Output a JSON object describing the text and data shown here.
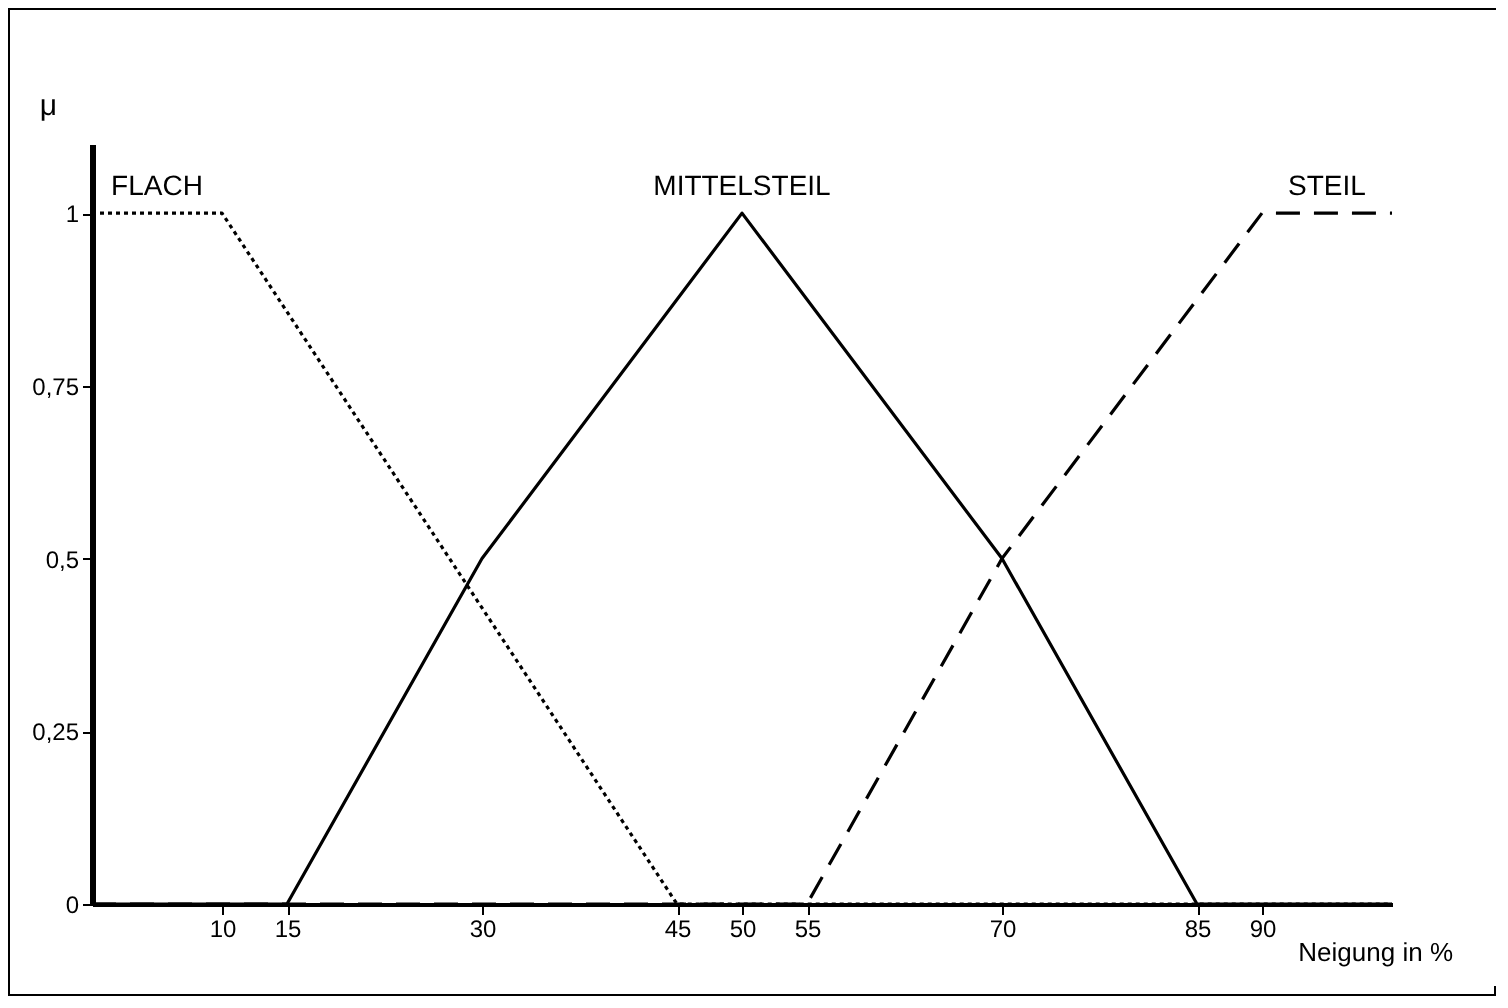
{
  "chart_data": {
    "type": "line",
    "ylabel": "μ",
    "xlabel": "Neigung in %",
    "xlim": [
      0,
      100
    ],
    "xticks": [
      10,
      15,
      30,
      45,
      50,
      55,
      70,
      85,
      90
    ],
    "ylim": [
      0,
      1.1
    ],
    "yticks": [
      0,
      {
        "value": 0.25,
        "label": "0,25"
      },
      {
        "value": 0.5,
        "label": "0,5"
      },
      {
        "value": 0.75,
        "label": "0,75"
      },
      1
    ],
    "grid": false,
    "legend": false,
    "marker": "none",
    "series": [
      {
        "name": "FLACH",
        "color": "#000000",
        "line_style": "dotted",
        "x": [
          0,
          10,
          45,
          100
        ],
        "values": [
          1,
          1,
          0,
          0
        ]
      },
      {
        "name": "MITTELSTEIL",
        "color": "#000000",
        "line_style": "solid",
        "x": [
          0,
          15,
          30,
          50,
          70,
          85,
          100
        ],
        "values": [
          0,
          0,
          0.5,
          1,
          0.5,
          0,
          0
        ]
      },
      {
        "name": "STEIL",
        "color": "#000000",
        "line_style": "dashed",
        "x": [
          0,
          55,
          70,
          90,
          100
        ],
        "values": [
          0,
          0,
          0.5,
          1,
          1
        ]
      }
    ]
  }
}
